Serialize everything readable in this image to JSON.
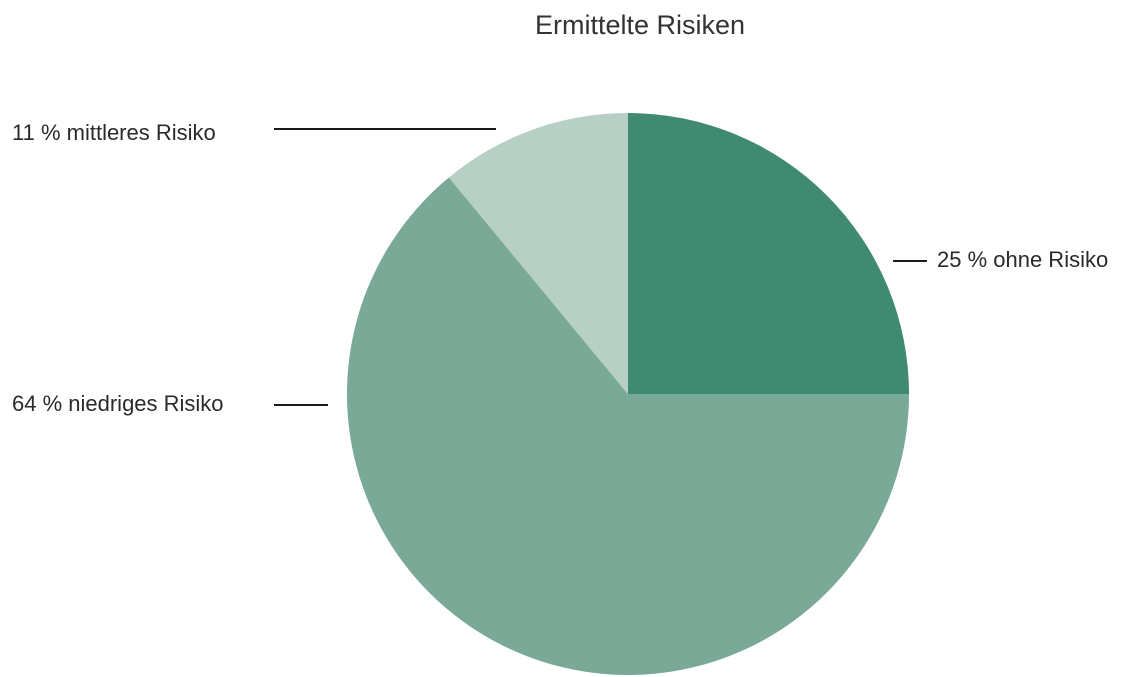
{
  "chart_data": {
    "type": "pie",
    "title": "Ermittelte Risiken",
    "slices": [
      {
        "label": "25 % ohne Risiko",
        "value": 25,
        "color": "#3f8a70"
      },
      {
        "label": "64 % niedriges Risiko",
        "value": 64,
        "color": "#7aa997"
      },
      {
        "label": "11 % mittleres Risiko",
        "value": 11,
        "color": "#b7d0c5"
      }
    ],
    "start_angle": "12 o'clock",
    "direction": "clockwise",
    "legend": "none"
  }
}
